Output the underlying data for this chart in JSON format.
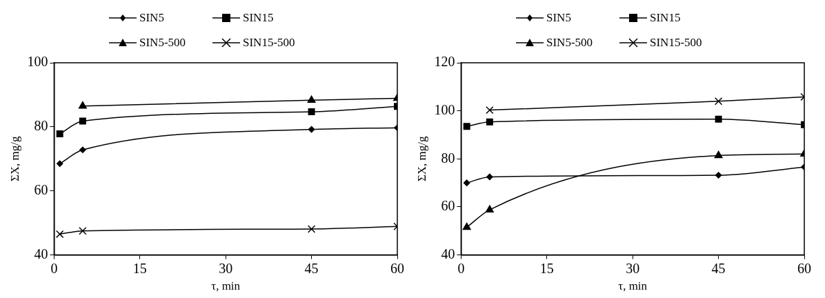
{
  "chart_data": [
    {
      "type": "line",
      "xlabel": "τ, min",
      "ylabel": "ΣX, mg/g",
      "x": [
        1,
        5,
        45,
        60
      ],
      "xlim": [
        0,
        60
      ],
      "xticks": [
        0,
        15,
        30,
        45,
        60
      ],
      "ylim": [
        40,
        100
      ],
      "yticks": [
        40,
        60,
        80,
        100
      ],
      "grid": false,
      "legend": "top",
      "line_style": "solid",
      "series": [
        {
          "name": "SIN5",
          "color": "#000000",
          "marker": "diamond",
          "values": [
            68.5,
            72.8,
            79.2,
            79.7
          ]
        },
        {
          "name": "SIN15",
          "color": "#000000",
          "marker": "square",
          "values": [
            77.8,
            81.8,
            84.7,
            86.4
          ]
        },
        {
          "name": "SIN5-500",
          "color": "#000000",
          "marker": "triangle",
          "values": [
            null,
            86.5,
            88.3,
            88.9
          ]
        },
        {
          "name": "SIN15-500",
          "color": "#000000",
          "marker": "cross",
          "values": [
            46.5,
            47.5,
            48.1,
            48.9
          ]
        }
      ]
    },
    {
      "type": "line",
      "xlabel": "τ, min",
      "ylabel": "ΣX, mg/g",
      "x": [
        1,
        5,
        45,
        60
      ],
      "xlim": [
        0,
        60
      ],
      "xticks": [
        0,
        15,
        30,
        45,
        60
      ],
      "ylim": [
        40,
        120
      ],
      "yticks": [
        40,
        60,
        80,
        100,
        120
      ],
      "grid": false,
      "legend": "top",
      "line_style": "solid",
      "series": [
        {
          "name": "SIN5",
          "color": "#000000",
          "marker": "diamond",
          "values": [
            70,
            72.5,
            73.2,
            76.6
          ]
        },
        {
          "name": "SIN15",
          "color": "#000000",
          "marker": "square",
          "values": [
            93.5,
            95.4,
            96.5,
            94.2
          ]
        },
        {
          "name": "SIN5-500",
          "color": "#000000",
          "marker": "triangle",
          "values": [
            51.5,
            58.8,
            81.4,
            82
          ]
        },
        {
          "name": "SIN15-500",
          "color": "#000000",
          "marker": "cross",
          "values": [
            null,
            100.3,
            104,
            105.8
          ]
        }
      ]
    }
  ]
}
